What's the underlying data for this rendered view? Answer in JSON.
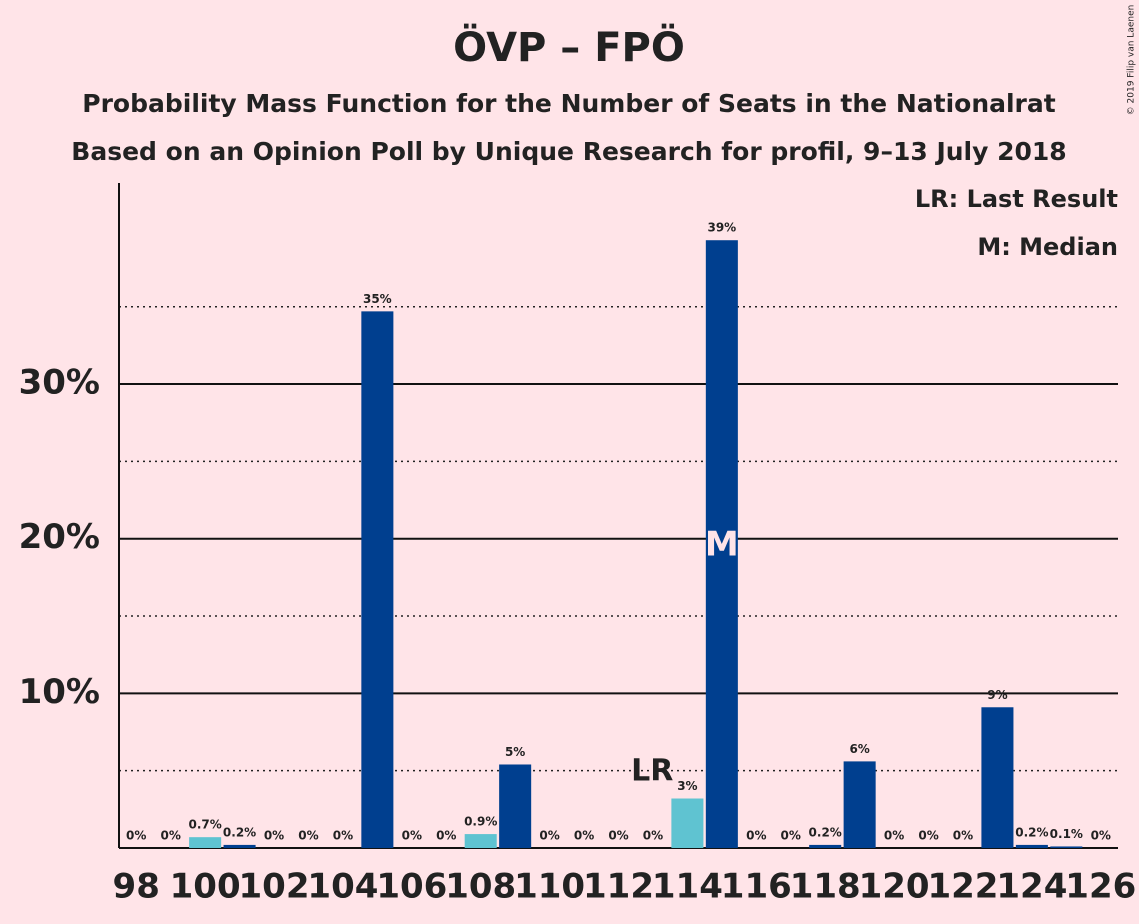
{
  "chart_data": {
    "type": "bar",
    "title": "ÖVP – FPÖ",
    "subtitle": "Probability Mass Function for the Number of Seats in the Nationalrat",
    "subtitle2": "Based on an Opinion Poll by Unique Research for profil, 9–13 July 2018",
    "copyright": "© 2019 Filip van Laenen",
    "legend": [
      "LR: Last Result",
      "M: Median"
    ],
    "x": [
      98,
      99,
      100,
      101,
      102,
      103,
      104,
      105,
      106,
      107,
      108,
      109,
      110,
      111,
      112,
      113,
      114,
      115,
      116,
      117,
      118,
      119,
      120,
      121,
      122,
      123,
      124,
      125,
      126
    ],
    "values": [
      0,
      0,
      0.7,
      0.2,
      0,
      0,
      0,
      34.7,
      0,
      0,
      0.9,
      5.4,
      0,
      0,
      0,
      0,
      3.2,
      39.3,
      0,
      0,
      0.2,
      5.6,
      0,
      0,
      0,
      9.1,
      0.2,
      0.1,
      0
    ],
    "value_labels": [
      "0%",
      "0%",
      "0.7%",
      "0.2%",
      "0%",
      "0%",
      "0%",
      "35%",
      "0%",
      "0%",
      "0.9%",
      "5%",
      "0%",
      "0%",
      "0%",
      "0%",
      "3%",
      "39%",
      "0%",
      "0%",
      "0.2%",
      "6%",
      "0%",
      "0%",
      "0%",
      "9%",
      "0.2%",
      "0.1%",
      "0%"
    ],
    "colors": [
      "#003f8f",
      "#003f8f",
      "#5fc3d1",
      "#003f8f",
      "#003f8f",
      "#003f8f",
      "#003f8f",
      "#003f8f",
      "#003f8f",
      "#003f8f",
      "#5fc3d1",
      "#003f8f",
      "#003f8f",
      "#003f8f",
      "#003f8f",
      "#003f8f",
      "#5fc3d1",
      "#003f8f",
      "#003f8f",
      "#003f8f",
      "#003f8f",
      "#003f8f",
      "#003f8f",
      "#003f8f",
      "#003f8f",
      "#003f8f",
      "#003f8f",
      "#003f8f",
      "#003f8f"
    ],
    "xlim": [
      97.5,
      126.5
    ],
    "xticks": [
      98,
      100,
      102,
      104,
      106,
      108,
      110,
      112,
      114,
      116,
      118,
      120,
      122,
      124,
      126
    ],
    "ylim": [
      0,
      43
    ],
    "yticks": [
      {
        "value": 10,
        "label": "10%"
      },
      {
        "value": 20,
        "label": "20%"
      },
      {
        "value": 30,
        "label": "30%"
      }
    ],
    "minor_gridlines": [
      5,
      15,
      25,
      35
    ],
    "annotations": [
      {
        "text": "LR",
        "x": 114
      },
      {
        "text": "M",
        "x": 115
      }
    ]
  }
}
